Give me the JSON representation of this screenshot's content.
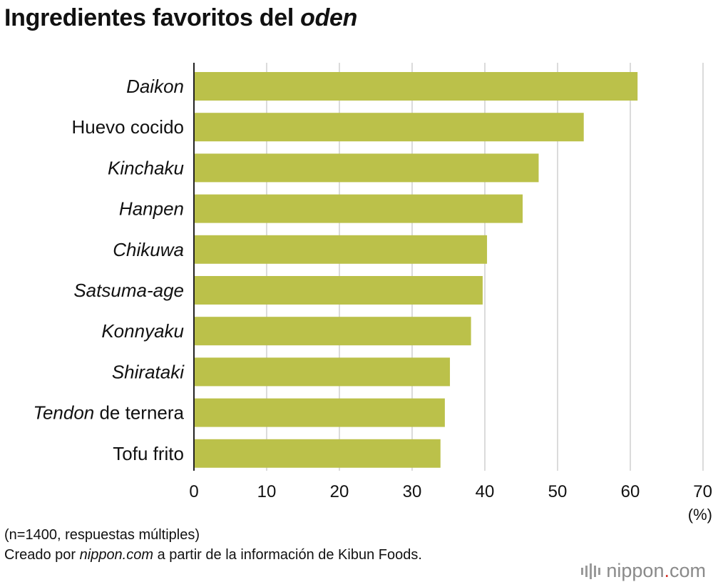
{
  "title": {
    "prefix": "Ingredientes favoritos del ",
    "emphasis": "oden"
  },
  "chart_data": {
    "type": "bar",
    "orientation": "horizontal",
    "categories": [
      "Daikon",
      "Huevo cocido",
      "Kinchaku",
      "Hanpen",
      "Chikuwa",
      "Satsuma-age",
      "Konnyaku",
      "Shirataki",
      "Tendon de ternera",
      "Tofu frito"
    ],
    "values": [
      61.0,
      53.6,
      47.4,
      45.2,
      40.3,
      39.7,
      38.1,
      35.2,
      34.5,
      33.9
    ],
    "category_labels": [
      {
        "italic": "Daikon",
        "rest": ""
      },
      {
        "italic": "",
        "rest": "Huevo cocido"
      },
      {
        "italic": "Kinchaku",
        "rest": ""
      },
      {
        "italic": "Hanpen",
        "rest": ""
      },
      {
        "italic": "Chikuwa",
        "rest": ""
      },
      {
        "italic": "Satsuma-age",
        "rest": ""
      },
      {
        "italic": "Konnyaku",
        "rest": ""
      },
      {
        "italic": "Shirataki",
        "rest": ""
      },
      {
        "italic": "Tendon",
        "rest": " de ternera"
      },
      {
        "italic": "",
        "rest": "Tofu frito"
      }
    ],
    "x_ticks": [
      "0",
      "10",
      "20",
      "30",
      "40",
      "50",
      "60",
      "70"
    ],
    "xlim": [
      0,
      70
    ],
    "unit": "(%)",
    "grid": true,
    "bar_color": "#bbc14a",
    "grid_color": "#cfcfcf",
    "axis_color": "#222222"
  },
  "footer": {
    "note": "(n=1400, respuestas múltiples)",
    "source_prefix": "Creado por ",
    "source_emphasis": "nippon.com",
    "source_suffix": " a partir de la información de Kibun Foods."
  },
  "brand": {
    "name": "nippon",
    "dot": ".",
    "tld": "com",
    "mark_color": "#9a9a9a",
    "dot_color": "#d7342b"
  }
}
